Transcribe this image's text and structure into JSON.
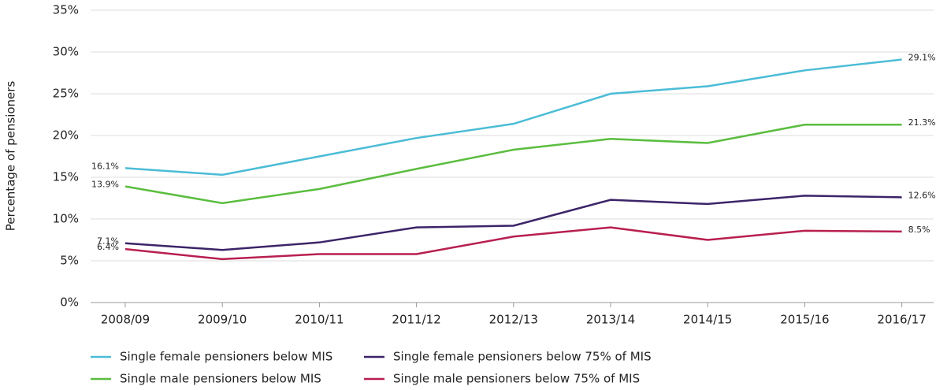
{
  "chart_data": {
    "type": "line",
    "y_label": "Percentage of pensioners",
    "categories": [
      "2008/09",
      "2009/10",
      "2010/11",
      "2011/12",
      "2012/13",
      "2013/14",
      "2014/15",
      "2015/16",
      "2016/17"
    ],
    "ylim": [
      0,
      35
    ],
    "yticks": [
      {
        "value": 0,
        "label": "0%"
      },
      {
        "value": 5,
        "label": "5%"
      },
      {
        "value": 10,
        "label": "10%"
      },
      {
        "value": 15,
        "label": "15%"
      },
      {
        "value": 20,
        "label": "20%"
      },
      {
        "value": 25,
        "label": "25%"
      },
      {
        "value": 30,
        "label": "30%"
      },
      {
        "value": 35,
        "label": "35%"
      }
    ],
    "grid": true,
    "series": [
      {
        "name": "Single female pensioners below MIS",
        "color": "#4bbcd6",
        "values": [
          16.1,
          15.3,
          17.5,
          19.7,
          21.4,
          25.0,
          25.9,
          27.8,
          29.1
        ],
        "value_labels": [
          "16.1%",
          null,
          null,
          null,
          null,
          null,
          null,
          null,
          "29.1%"
        ]
      },
      {
        "name": "Single male pensioners below MIS",
        "color": "#5bbd3f",
        "values": [
          13.9,
          11.9,
          13.6,
          16.0,
          18.3,
          19.6,
          19.1,
          21.3,
          21.3
        ],
        "value_labels": [
          "13.9%",
          null,
          null,
          null,
          null,
          null,
          null,
          null,
          "21.3%"
        ]
      },
      {
        "name": "Single female pensioners below 75% of MIS",
        "color": "#3b2468",
        "values": [
          7.1,
          6.3,
          7.2,
          9.0,
          9.2,
          12.3,
          11.8,
          12.8,
          12.6
        ],
        "value_labels": [
          "7.1%",
          null,
          null,
          null,
          null,
          null,
          null,
          null,
          "12.6%"
        ]
      },
      {
        "name": "Single male pensioners below 75% of MIS",
        "color": "#b81f4f",
        "values": [
          6.4,
          5.2,
          5.8,
          5.8,
          7.9,
          9.0,
          7.5,
          8.6,
          8.5
        ],
        "value_labels": [
          "6.4%",
          null,
          null,
          null,
          null,
          null,
          null,
          null,
          "8.5%"
        ]
      }
    ]
  }
}
